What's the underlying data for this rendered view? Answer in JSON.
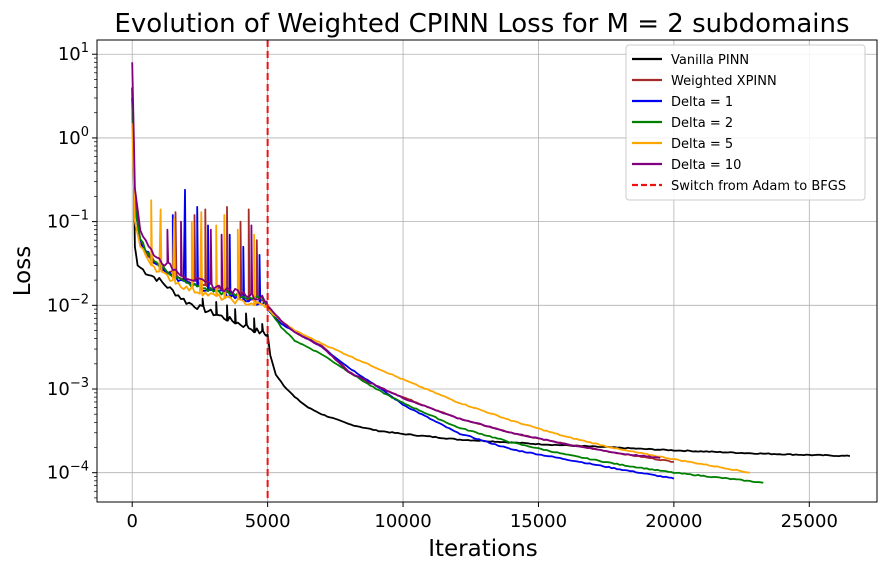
{
  "chart_data": {
    "type": "line",
    "title": "Evolution of Weighted CPINN Loss for M = 2 subdomains",
    "xlabel": "Iterations",
    "ylabel": "Loss",
    "xlim": [
      -1300,
      27500
    ],
    "ylim_log10": [
      -4.35,
      1.17
    ],
    "yscale": "log",
    "grid": true,
    "legend_position": "top-right",
    "x_ticks": [
      0,
      5000,
      10000,
      15000,
      20000,
      25000
    ],
    "x_tick_labels": [
      "0",
      "5000",
      "10000",
      "15000",
      "20000",
      "25000"
    ],
    "y_tick_exponents": [
      1,
      0,
      -1,
      -2,
      -3,
      -4
    ],
    "y_tick_base": "10",
    "y_tick_sups": [
      "1",
      "0",
      "−1",
      "−2",
      "−3",
      "−4"
    ],
    "vline": {
      "x": 5000,
      "label": "Switch from Adam to BFGS",
      "color": "#ee1111"
    },
    "series": [
      {
        "name": "Vanilla PINN",
        "color": "#000000",
        "x": [
          0,
          100,
          200,
          500,
          1000,
          2000,
          3000,
          4000,
          4900,
          5000,
          5100,
          5300,
          5600,
          6000,
          6500,
          7000,
          8000,
          9000,
          10000,
          11000,
          12000,
          13000,
          15000,
          17000,
          20000,
          23000,
          26500
        ],
        "y": [
          4,
          0.05,
          0.03,
          0.025,
          0.02,
          0.011,
          0.008,
          0.006,
          0.0045,
          0.0045,
          0.0025,
          0.0015,
          0.0011,
          0.0008,
          0.0006,
          0.0005,
          0.00038,
          0.00032,
          0.00029,
          0.00027,
          0.00025,
          0.00024,
          0.00022,
          0.000205,
          0.000185,
          0.00017,
          0.000158
        ],
        "spikes": [
          [
            2600,
            0.012
          ],
          [
            3100,
            0.011
          ],
          [
            3500,
            0.01
          ],
          [
            3800,
            0.009
          ],
          [
            4200,
            0.008
          ],
          [
            4500,
            0.007
          ],
          [
            4800,
            0.006
          ]
        ]
      },
      {
        "name": "Weighted XPINN",
        "color": "#a52a2a",
        "x": [
          0,
          100,
          300,
          600,
          1000,
          2000,
          3000,
          4000,
          4900,
          5000,
          5500,
          6000,
          7000,
          8000,
          9000,
          10000,
          12000,
          14000,
          16000,
          18000,
          20000
        ],
        "y": [
          3,
          0.2,
          0.06,
          0.04,
          0.028,
          0.02,
          0.016,
          0.013,
          0.011,
          0.0095,
          0.0065,
          0.0048,
          0.0033,
          0.0016,
          0.0011,
          0.0008,
          0.00045,
          0.0003,
          0.00022,
          0.00017,
          0.000135
        ],
        "spikes": [
          [
            1600,
            0.13
          ],
          [
            2300,
            0.12
          ],
          [
            2700,
            0.14
          ],
          [
            3500,
            0.15
          ],
          [
            4000,
            0.1
          ],
          [
            4300,
            0.14
          ],
          [
            4600,
            0.06
          ]
        ]
      },
      {
        "name": "Delta = 1",
        "color": "#0000ee",
        "x": [
          0,
          100,
          300,
          600,
          1000,
          2000,
          3000,
          4000,
          4900,
          5000,
          5500,
          6000,
          7000,
          8000,
          9000,
          10000,
          12000,
          14000,
          16000,
          18000,
          20000
        ],
        "y": [
          3,
          0.15,
          0.06,
          0.04,
          0.03,
          0.018,
          0.015,
          0.012,
          0.0105,
          0.009,
          0.006,
          0.0048,
          0.0032,
          0.0018,
          0.0011,
          0.00065,
          0.0003,
          0.00019,
          0.000145,
          0.00011,
          8.5e-05
        ],
        "spikes": [
          [
            1500,
            0.12
          ],
          [
            1950,
            0.24
          ],
          [
            2400,
            0.15
          ],
          [
            2800,
            0.09
          ],
          [
            3600,
            0.07
          ],
          [
            4100,
            0.05
          ],
          [
            4700,
            0.04
          ]
        ]
      },
      {
        "name": "Delta = 2",
        "color": "#008000",
        "x": [
          0,
          100,
          300,
          600,
          1000,
          2000,
          3000,
          4000,
          4900,
          5000,
          5500,
          6000,
          7000,
          8000,
          9000,
          10000,
          12000,
          14000,
          16000,
          18000,
          20000,
          22000,
          23300
        ],
        "y": [
          2.5,
          0.15,
          0.06,
          0.04,
          0.03,
          0.018,
          0.015,
          0.013,
          0.0115,
          0.0095,
          0.0055,
          0.0038,
          0.0026,
          0.0016,
          0.001,
          0.00068,
          0.00035,
          0.00023,
          0.000165,
          0.000125,
          0.0001,
          8.5e-05,
          7.6e-05
        ]
      },
      {
        "name": "Delta = 5",
        "color": "#ffa500",
        "x": [
          0,
          100,
          300,
          600,
          1000,
          2000,
          3000,
          4000,
          4900,
          5000,
          5500,
          6000,
          7000,
          8000,
          9000,
          10000,
          12000,
          14000,
          16000,
          18000,
          20000,
          22000,
          22800
        ],
        "y": [
          1.5,
          0.1,
          0.05,
          0.035,
          0.025,
          0.016,
          0.013,
          0.011,
          0.01,
          0.009,
          0.0065,
          0.005,
          0.0035,
          0.0025,
          0.0018,
          0.0013,
          0.0007,
          0.00042,
          0.00027,
          0.00019,
          0.000145,
          0.000112,
          0.0001
        ],
        "spikes": [
          [
            700,
            0.18
          ],
          [
            1050,
            0.14
          ],
          [
            1550,
            0.11
          ],
          [
            2200,
            0.1
          ],
          [
            2550,
            0.13
          ],
          [
            3100,
            0.09
          ],
          [
            3400,
            0.12
          ],
          [
            3900,
            0.08
          ],
          [
            4500,
            0.07
          ]
        ]
      },
      {
        "name": "Delta = 10",
        "color": "#800080",
        "x": [
          0,
          100,
          300,
          600,
          1000,
          2000,
          3000,
          4000,
          4900,
          5000,
          5500,
          6000,
          7000,
          8000,
          9000,
          10000,
          12000,
          14000,
          16000,
          18000,
          19500
        ],
        "y": [
          8,
          0.25,
          0.08,
          0.05,
          0.035,
          0.022,
          0.017,
          0.014,
          0.012,
          0.01,
          0.0065,
          0.0048,
          0.0032,
          0.0016,
          0.0011,
          0.00078,
          0.00045,
          0.0003,
          0.00022,
          0.00017,
          0.00015
        ],
        "spikes": [
          [
            1300,
            0.08
          ],
          [
            1800,
            0.1
          ],
          [
            2900,
            0.08
          ],
          [
            3300,
            0.07
          ],
          [
            4400,
            0.09
          ]
        ]
      }
    ],
    "legend": [
      {
        "label": "Vanilla PINN",
        "color": "#000000",
        "dashed": false
      },
      {
        "label": "Weighted XPINN",
        "color": "#a52a2a",
        "dashed": false
      },
      {
        "label": "Delta = 1",
        "color": "#0000ee",
        "dashed": false
      },
      {
        "label": "Delta = 2",
        "color": "#008000",
        "dashed": false
      },
      {
        "label": "Delta = 5",
        "color": "#ffa500",
        "dashed": false
      },
      {
        "label": "Delta = 10",
        "color": "#800080",
        "dashed": false
      },
      {
        "label": "Switch from Adam to BFGS",
        "color": "#ee1111",
        "dashed": true
      }
    ]
  }
}
